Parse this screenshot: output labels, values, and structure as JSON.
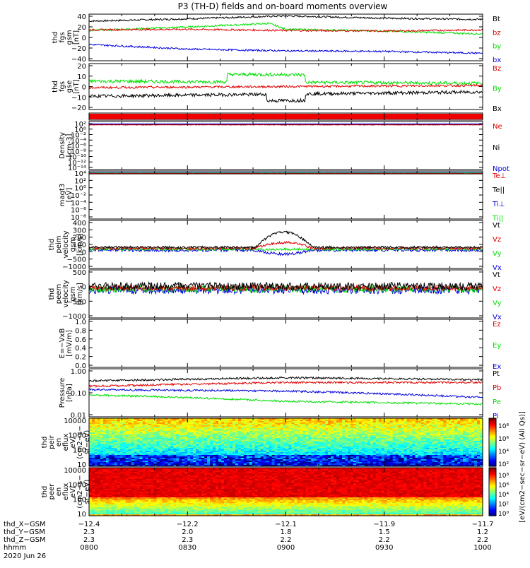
{
  "title": "P3 (TH-D) fields and on-board moments overview",
  "colors": {
    "black": "#000000",
    "red": "#e00000",
    "green": "#00e000",
    "blue": "#0000e0",
    "frame": "#000000"
  },
  "panels": [
    {
      "id": "fgs-gsm",
      "ylabel": [
        "thd",
        "fgs",
        "gsm",
        "[nT]"
      ],
      "ticks": [
        "40",
        "20",
        "0",
        "−20",
        "−40"
      ],
      "legend": [
        {
          "text": "Bt",
          "color": "#000000"
        },
        {
          "text": "bz",
          "color": "#e00000"
        },
        {
          "text": "by",
          "color": "#00e000"
        },
        {
          "text": "bx",
          "color": "#0000e0"
        }
      ]
    },
    {
      "id": "fgs-gse",
      "ylabel": [
        "thd",
        "fgs",
        "gse",
        "[nT]"
      ],
      "ticks": [
        "20",
        "10",
        "0",
        "−10",
        "−20"
      ],
      "legend": [
        {
          "text": "Bz",
          "color": "#e00000"
        },
        {
          "text": "By",
          "color": "#00e000"
        },
        {
          "text": "Bx",
          "color": "#000000"
        }
      ]
    },
    {
      "id": "flags",
      "ylabel": [],
      "ticks": [],
      "legend": []
    },
    {
      "id": "density",
      "ylabel": [
        "Density",
        "[cm-3]"
      ],
      "ticks": [
        "10²",
        "10⁰",
        "10⁻²",
        "10⁻⁴",
        "10⁻⁶",
        "10⁻⁸",
        "10⁻¹⁰",
        "10⁻¹²",
        "10⁻¹⁴"
      ],
      "legend": [
        {
          "text": "Ne",
          "color": "#e00000"
        },
        {
          "text": "Ni",
          "color": "#000000"
        },
        {
          "text": "Npot",
          "color": "#0000e0"
        }
      ]
    },
    {
      "id": "temperature",
      "ylabel": [
        "magt3",
        "[eV]"
      ],
      "ticks": [
        "10⁴",
        "10²",
        "10⁰",
        "10⁻²",
        "10⁻⁴",
        "10⁻⁶",
        "10⁻⁸"
      ],
      "legend": [
        {
          "text": "Te⊥",
          "color": "#e00000"
        },
        {
          "text": "Te||",
          "color": "#000000"
        },
        {
          "text": "Ti⊥",
          "color": "#0000e0"
        },
        {
          "text": "Ti||",
          "color": "#00e000"
        }
      ]
    },
    {
      "id": "peim-velocity",
      "ylabel": [
        "thd",
        "peim",
        "velocity",
        "gsm",
        "[km/s]"
      ],
      "ticks": [
        "400",
        "300",
        "200",
        "100",
        "0",
        "−500",
        "−1000"
      ],
      "legend": [
        {
          "text": "Vt",
          "color": "#000000"
        },
        {
          "text": "Vz",
          "color": "#e00000"
        },
        {
          "text": "Vy",
          "color": "#00e000"
        },
        {
          "text": "Vx",
          "color": "#0000e0"
        }
      ]
    },
    {
      "id": "peem-velocity",
      "ylabel": [
        "thd",
        "peem",
        "velocity",
        "gsm",
        "[km/s]"
      ],
      "ticks": [
        "500",
        "0",
        "−500",
        "−1000"
      ],
      "legend": [
        {
          "text": "Vt",
          "color": "#000000"
        },
        {
          "text": "Vz",
          "color": "#e00000"
        },
        {
          "text": "Vy",
          "color": "#00e000"
        },
        {
          "text": "Vx",
          "color": "#0000e0"
        }
      ]
    },
    {
      "id": "efield",
      "ylabel": [
        "E=−VxB",
        "[mV/m]"
      ],
      "ticks": [
        "1.0",
        "0.8",
        "0.6",
        "0.4",
        "0.2",
        "0.0"
      ],
      "legend": [
        {
          "text": "Ez",
          "color": "#e00000"
        },
        {
          "text": "Ey",
          "color": "#00e000"
        },
        {
          "text": "Ex",
          "color": "#0000e0"
        }
      ]
    },
    {
      "id": "pressure",
      "ylabel": [
        "Pressure",
        "[nPa]"
      ],
      "ticks": [
        "1.00",
        "0.10",
        "0.01"
      ],
      "legend": [
        {
          "text": "Pt",
          "color": "#000000"
        },
        {
          "text": "Pb",
          "color": "#e00000"
        },
        {
          "text": "Pe",
          "color": "#00e000"
        },
        {
          "text": "Pi",
          "color": "#0000e0"
        }
      ]
    },
    {
      "id": "peir-spec",
      "ylabel": [
        "thd",
        "peir",
        "en",
        "eflux",
        "eV/",
        "(cm2−s−",
        "sr−eV)"
      ],
      "ticks": [
        "10000",
        "1000",
        "100",
        "10"
      ],
      "legend": []
    },
    {
      "id": "peer-spec",
      "ylabel": [
        "thd",
        "peer",
        "en",
        "eflux",
        "eV/",
        "(cm2−s−",
        "sr−eV)"
      ],
      "ticks": [
        "10000",
        "1000",
        "100",
        "10"
      ],
      "legend": []
    }
  ],
  "colorbars": [
    {
      "ticks": [
        "10⁸",
        "10⁶",
        "10⁴",
        "10²"
      ]
    },
    {
      "ticks": [
        "10⁸",
        "10⁶",
        "10⁴",
        "10²",
        "10⁰"
      ]
    }
  ],
  "colorbar_label": "[eV/(cm2−sec−sr−eV) (All Qs)]",
  "xaxis": {
    "rows": [
      {
        "label": "thd_X−GSM",
        "values": [
          "−12.4",
          "−12.2",
          "−12.1",
          "−11.9",
          "−11.7"
        ]
      },
      {
        "label": "thd_Y−GSM",
        "values": [
          "2.3",
          "2.0",
          "1.8",
          "1.5",
          "1.2"
        ]
      },
      {
        "label": "thd_Z−GSM",
        "values": [
          "2.3",
          "2.3",
          "2.2",
          "2.2",
          "2.2"
        ]
      },
      {
        "label": "hhmm",
        "values": [
          "0800",
          "0830",
          "0900",
          "0930",
          "1000"
        ]
      }
    ],
    "date": "2020 Jun 26"
  },
  "chart_data": {
    "type": "line",
    "time_range": [
      "0800",
      "1000"
    ],
    "series_approx": {
      "Bt_nT": [
        [
          0,
          28
        ],
        [
          30,
          32
        ],
        [
          60,
          37
        ],
        [
          90,
          33
        ],
        [
          120,
          31
        ]
      ],
      "bz_nT": [
        [
          0,
          13
        ],
        [
          30,
          14
        ],
        [
          60,
          12
        ],
        [
          90,
          11
        ],
        [
          120,
          13
        ]
      ],
      "by_nT": [
        [
          0,
          12
        ],
        [
          30,
          18
        ],
        [
          55,
          24
        ],
        [
          60,
          14
        ],
        [
          90,
          11
        ],
        [
          120,
          6
        ]
      ],
      "bx_nT": [
        [
          0,
          -12
        ],
        [
          30,
          -20
        ],
        [
          60,
          -23
        ],
        [
          90,
          -24
        ],
        [
          120,
          -27
        ]
      ],
      "Pt_nPa": [
        [
          0,
          0.35
        ],
        [
          60,
          0.5
        ],
        [
          120,
          0.4
        ]
      ],
      "Pb_nPa": [
        [
          0,
          0.2
        ],
        [
          60,
          0.3
        ],
        [
          120,
          0.3
        ]
      ],
      "Pe_nPa": [
        [
          0,
          0.08
        ],
        [
          60,
          0.04
        ],
        [
          120,
          0.03
        ]
      ],
      "Pi_nPa": [
        [
          0,
          0.14
        ],
        [
          60,
          0.12
        ],
        [
          120,
          0.06
        ]
      ]
    }
  }
}
